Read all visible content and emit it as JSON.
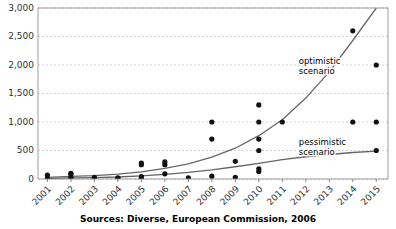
{
  "chart_data": {
    "type": "scatter",
    "source": "Sources: Diverse, European Commission, 2006",
    "series": [
      {
        "type": "scatter",
        "color": "#111111",
        "marker": "circle",
        "x": [
          2001,
          2001,
          2002,
          2002,
          2002,
          2003,
          2003,
          2004,
          2004,
          2005,
          2005,
          2005,
          2005,
          2006,
          2006,
          2006,
          2007,
          2008,
          2008,
          2008,
          2009,
          2009,
          2010,
          2010,
          2010,
          2010,
          2010,
          2010,
          2011,
          2014,
          2014,
          2015,
          2015,
          2015
        ],
        "values": [
          70,
          10,
          100,
          80,
          30,
          30,
          0,
          10,
          20,
          280,
          250,
          40,
          10,
          300,
          250,
          90,
          20,
          1000,
          700,
          50,
          310,
          30,
          1300,
          1000,
          700,
          500,
          180,
          130,
          1000,
          2600,
          1000,
          2000,
          1000,
          500
        ]
      },
      {
        "type": "line",
        "color": "#666666",
        "x": [
          2001,
          2002,
          2003,
          2004,
          2005,
          2006,
          2007,
          2008,
          2009,
          2010,
          2011,
          2012,
          2013,
          2014,
          2015
        ],
        "values": [
          30,
          45,
          60,
          85,
          125,
          185,
          265,
          385,
          540,
          760,
          1040,
          1420,
          1880,
          2430,
          3000
        ]
      },
      {
        "type": "line",
        "color": "#666666",
        "x": [
          2001,
          2002,
          2003,
          2004,
          2005,
          2006,
          2007,
          2008,
          2009,
          2010,
          2011,
          2012,
          2013,
          2014,
          2015
        ],
        "values": [
          10,
          18,
          25,
          35,
          55,
          80,
          115,
          160,
          215,
          275,
          340,
          390,
          430,
          465,
          490
        ]
      }
    ],
    "annotations": [
      {
        "text": "optimistic\nscenario",
        "x": 2011.7,
        "y": 1980
      },
      {
        "text": "pessimistic\nscenario",
        "x": 2011.7,
        "y": 570
      }
    ],
    "xlim": [
      2000.6,
      2015.5
    ],
    "xticks": [
      2001,
      2002,
      2003,
      2004,
      2005,
      2006,
      2007,
      2008,
      2009,
      2010,
      2011,
      2012,
      2013,
      2014,
      2015
    ],
    "ylim": [
      0,
      3000
    ],
    "yticks": [
      0,
      500,
      {
        "value": 1000,
        "label": "1,000"
      },
      {
        "value": 1500,
        "label": "1,500"
      },
      {
        "value": 2000,
        "label": "2,000"
      },
      {
        "value": 2500,
        "label": "2,500"
      },
      {
        "value": 3000,
        "label": "3,000"
      }
    ],
    "grid": true
  }
}
